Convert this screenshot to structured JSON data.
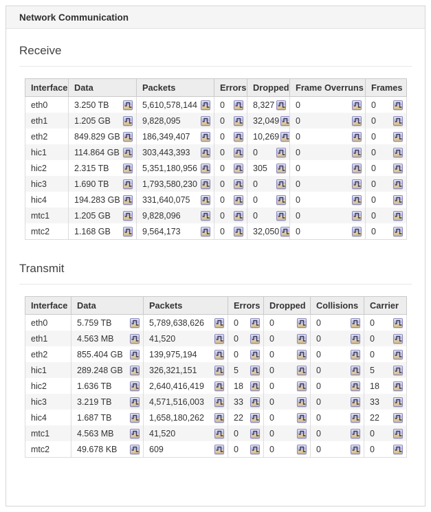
{
  "panel": {
    "title": "Network Communication"
  },
  "icons": {
    "chart": "step-line-chart-icon"
  },
  "colors": {
    "panel-border": "#d6d6d6",
    "panel-header-bg": "#f5f5f5",
    "heading-text": "#414141",
    "table-header-bg": "#ededed",
    "table-border": "#c9c9c9",
    "cell-border": "#dcdcdc",
    "row-stripe": "#f5f5f5",
    "icon-border": "#8787bd",
    "icon-lavender": "#b4b4e0",
    "icon-tan": "#e6d6b2",
    "icon-glyph": "#3b3b59",
    "text": "#333333"
  },
  "sections": [
    {
      "id": "receive",
      "heading": "Receive",
      "columns": [
        "Interface",
        "Data",
        "Packets",
        "Errors",
        "Dropped",
        "Frame Overruns",
        "Frames"
      ],
      "rows": [
        {
          "interface": "eth0",
          "cells": [
            "3.250 TB",
            "5,610,578,144",
            "0",
            "8,327",
            "0",
            "0"
          ]
        },
        {
          "interface": "eth1",
          "cells": [
            "1.205 GB",
            "9,828,095",
            "0",
            "32,049",
            "0",
            "0"
          ]
        },
        {
          "interface": "eth2",
          "cells": [
            "849.829 GB",
            "186,349,407",
            "0",
            "10,269",
            "0",
            "0"
          ]
        },
        {
          "interface": "hic1",
          "cells": [
            "114.864 GB",
            "303,443,393",
            "0",
            "0",
            "0",
            "0"
          ]
        },
        {
          "interface": "hic2",
          "cells": [
            "2.315 TB",
            "5,351,180,956",
            "0",
            "305",
            "0",
            "0"
          ]
        },
        {
          "interface": "hic3",
          "cells": [
            "1.690 TB",
            "1,793,580,230",
            "0",
            "0",
            "0",
            "0"
          ]
        },
        {
          "interface": "hic4",
          "cells": [
            "194.283 GB",
            "331,640,075",
            "0",
            "0",
            "0",
            "0"
          ]
        },
        {
          "interface": "mtc1",
          "cells": [
            "1.205 GB",
            "9,828,096",
            "0",
            "0",
            "0",
            "0"
          ]
        },
        {
          "interface": "mtc2",
          "cells": [
            "1.168 GB",
            "9,564,173",
            "0",
            "32,050",
            "0",
            "0"
          ]
        }
      ]
    },
    {
      "id": "transmit",
      "heading": "Transmit",
      "columns": [
        "Interface",
        "Data",
        "Packets",
        "Errors",
        "Dropped",
        "Collisions",
        "Carrier"
      ],
      "rows": [
        {
          "interface": "eth0",
          "cells": [
            "5.759 TB",
            "5,789,638,626",
            "0",
            "0",
            "0",
            "0"
          ]
        },
        {
          "interface": "eth1",
          "cells": [
            "4.563 MB",
            "41,520",
            "0",
            "0",
            "0",
            "0"
          ]
        },
        {
          "interface": "eth2",
          "cells": [
            "855.404 GB",
            "139,975,194",
            "0",
            "0",
            "0",
            "0"
          ]
        },
        {
          "interface": "hic1",
          "cells": [
            "289.248 GB",
            "326,321,151",
            "5",
            "0",
            "0",
            "5"
          ]
        },
        {
          "interface": "hic2",
          "cells": [
            "1.636 TB",
            "2,640,416,419",
            "18",
            "0",
            "0",
            "18"
          ]
        },
        {
          "interface": "hic3",
          "cells": [
            "3.219 TB",
            "4,571,516,003",
            "33",
            "0",
            "0",
            "33"
          ]
        },
        {
          "interface": "hic4",
          "cells": [
            "1.687 TB",
            "1,658,180,262",
            "22",
            "0",
            "0",
            "22"
          ]
        },
        {
          "interface": "mtc1",
          "cells": [
            "4.563 MB",
            "41,520",
            "0",
            "0",
            "0",
            "0"
          ]
        },
        {
          "interface": "mtc2",
          "cells": [
            "49.678 KB",
            "609",
            "0",
            "0",
            "0",
            "0"
          ]
        }
      ]
    }
  ]
}
